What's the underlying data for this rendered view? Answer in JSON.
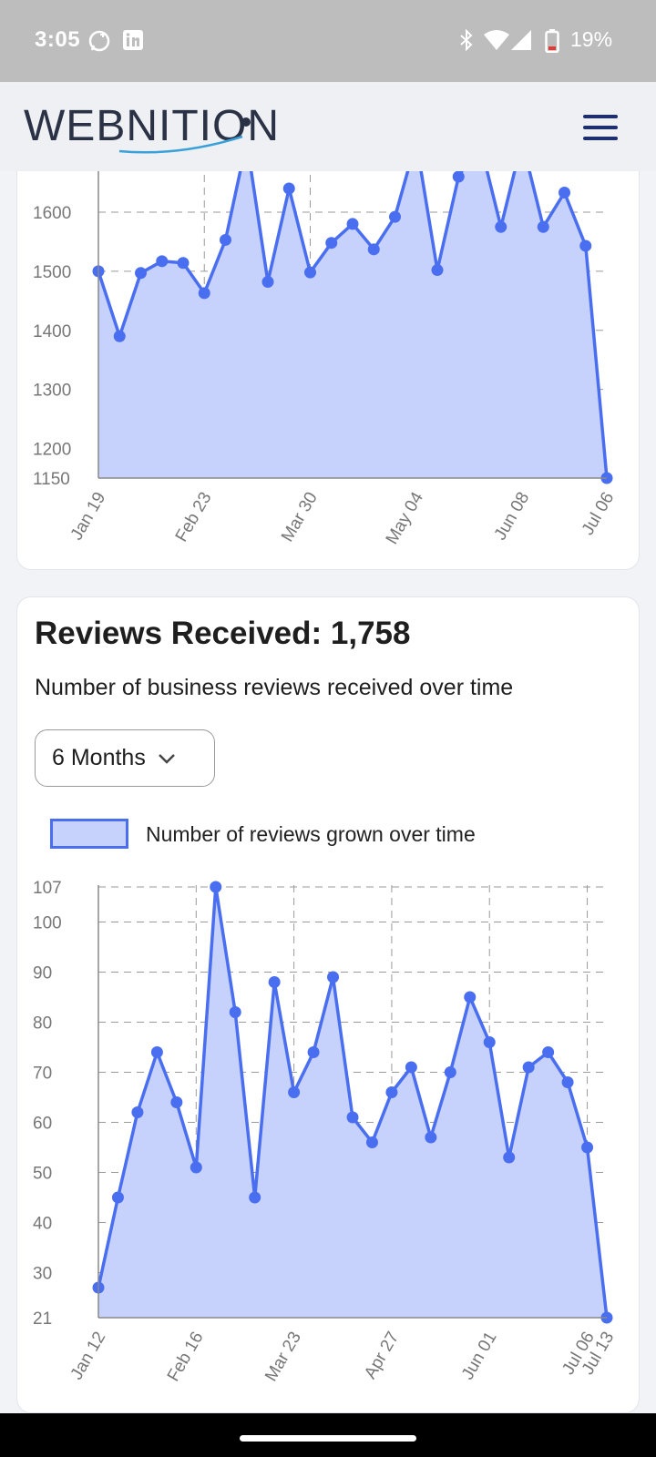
{
  "status_bar": {
    "time": "3:05",
    "battery": "19%",
    "icons": [
      "whatsapp-icon",
      "linkedin-icon",
      "bluetooth-icon",
      "wifi-icon",
      "cell-signal-icon",
      "battery-icon"
    ]
  },
  "header": {
    "logo_text": "WEBNITION",
    "menu_icon": "hamburger-menu-icon"
  },
  "colors": {
    "line": "#4a6ef0",
    "fill": "#c6d2fb",
    "grid": "#9a9a9a"
  },
  "card1": {
    "chart_data": {
      "type": "area",
      "x_tick_labels": [
        "Jan 19",
        "Feb 23",
        "Mar 30",
        "May 04",
        "Jun 08",
        "Jul 06"
      ],
      "y_tick_labels": [
        "1150",
        "1200",
        "1300",
        "1400",
        "1500",
        "1600"
      ],
      "ylim": [
        1150,
        1600
      ],
      "grid": true,
      "values": [
        1500,
        1390,
        1497,
        1517,
        1514,
        1463,
        1553,
        1720,
        1482,
        1640,
        1498,
        1548,
        1580,
        1537,
        1592,
        1720,
        1502,
        1660,
        1720,
        1575,
        1720,
        1575,
        1633,
        1543,
        1150
      ]
    }
  },
  "card2": {
    "title": "Reviews Received: 1,758",
    "subtitle": "Number of business reviews received over time",
    "range_select": "6 Months",
    "legend_label": "Number of reviews grown over time",
    "chart_data": {
      "type": "area",
      "title": "Reviews Received: 1,758",
      "series": [
        {
          "name": "Number of reviews grown over time",
          "values": [
            27,
            45,
            62,
            74,
            64,
            51,
            107,
            82,
            45,
            88,
            66,
            74,
            89,
            61,
            56,
            66,
            71,
            57,
            70,
            85,
            76,
            53,
            71,
            74,
            68,
            55,
            21
          ]
        }
      ],
      "x_tick_labels": [
        "Jan 12",
        "Feb 16",
        "Mar 23",
        "Apr 27",
        "Jun 01",
        "Jul 06",
        "Jul 13"
      ],
      "y_tick_labels": [
        "21",
        "30",
        "40",
        "50",
        "60",
        "70",
        "80",
        "90",
        "100",
        "107"
      ],
      "ylim": [
        21,
        107
      ],
      "grid": true,
      "legend": "top"
    }
  }
}
